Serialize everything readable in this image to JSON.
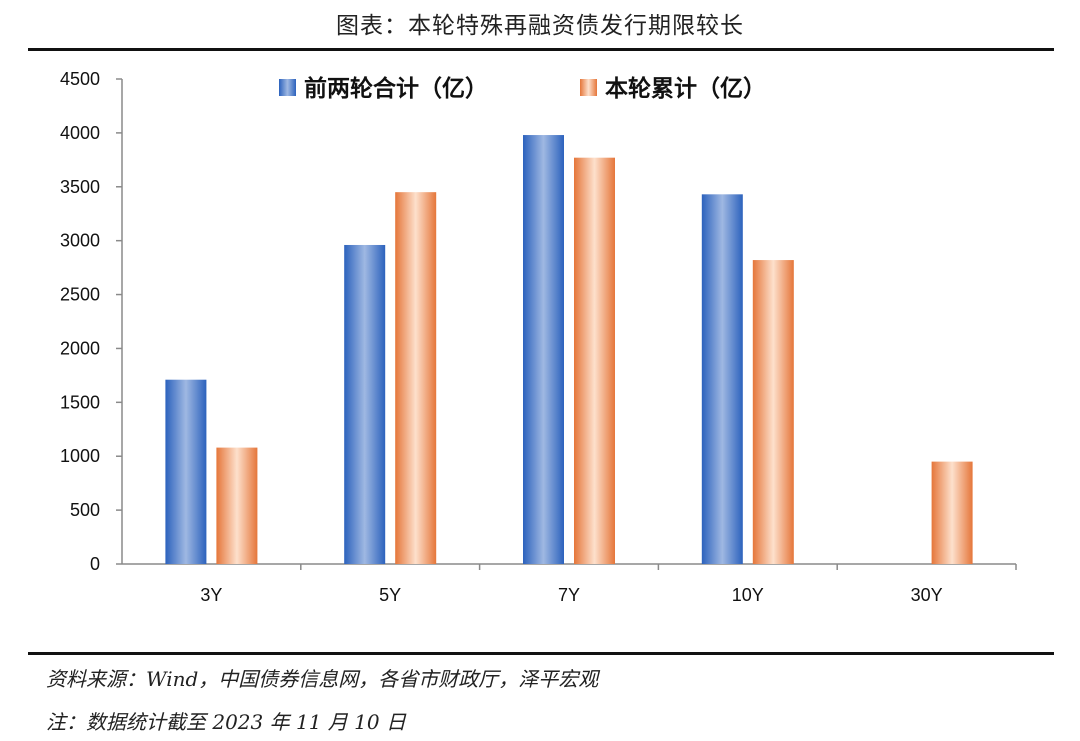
{
  "title": "图表：本轮特殊再融资债发行期限较长",
  "colors": {
    "series1_light": "#9fb8e2",
    "series1_dark": "#2c62bd",
    "series2_light": "#fde0cc",
    "series2_dark": "#e5763a",
    "axis": "#8a8a8a",
    "rule": "#111111"
  },
  "chart_data": {
    "type": "bar",
    "title": "",
    "xlabel": "",
    "ylabel": "",
    "categories": [
      "3Y",
      "5Y",
      "7Y",
      "10Y",
      "30Y"
    ],
    "series": [
      {
        "name": "前两轮合计（亿）",
        "values": [
          1710,
          2960,
          3980,
          3430,
          null
        ]
      },
      {
        "name": "本轮累计（亿）",
        "values": [
          1080,
          3450,
          3770,
          2820,
          950
        ]
      }
    ],
    "ylim": [
      0,
      4500
    ],
    "yticks": [
      0,
      500,
      1000,
      1500,
      2000,
      2500,
      3000,
      3500,
      4000,
      4500
    ],
    "grid": false,
    "legend": "top-center"
  },
  "footer": {
    "source": "资料来源：Wind，中国债券信息网，各省市财政厅，泽平宏观",
    "note": "注：数据统计截至 2023 年 11 月 10 日"
  }
}
